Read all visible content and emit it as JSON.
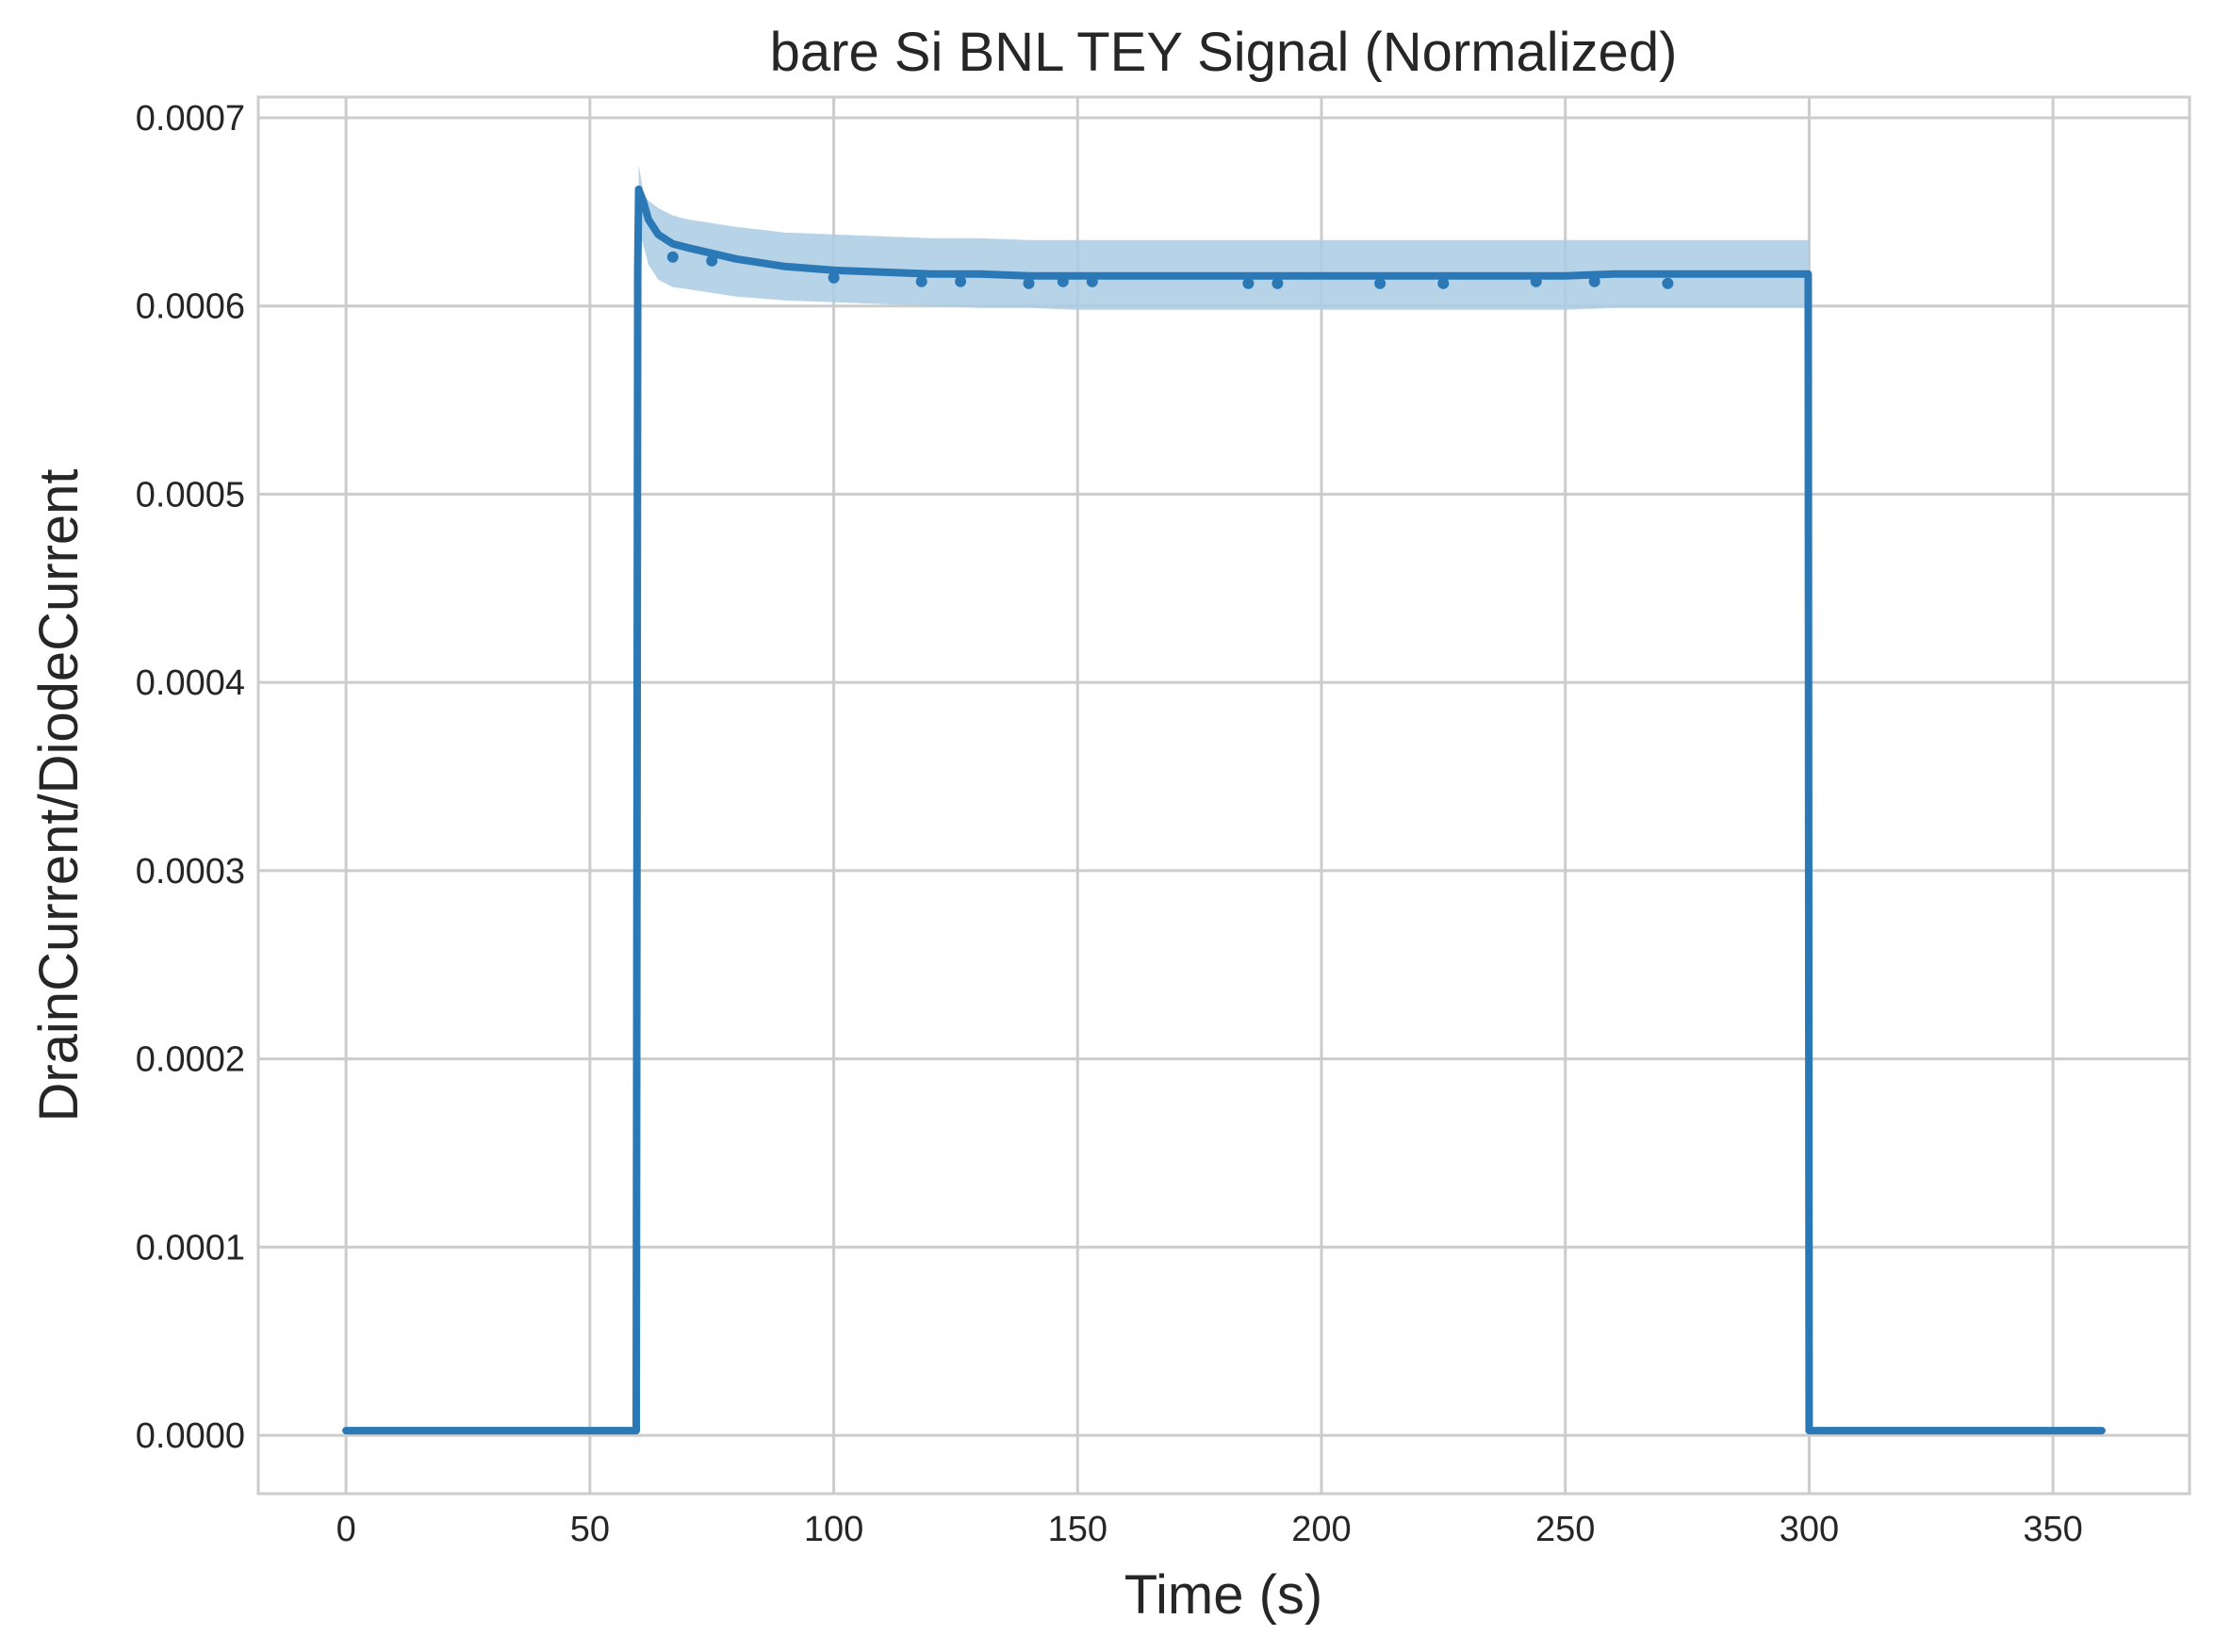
{
  "chart_data": {
    "type": "line",
    "title": "bare Si BNL TEY Signal (Normalized)",
    "xlabel": "Time (s)",
    "ylabel": "DrainCurrent/DiodeCurrent",
    "xlim": [
      -18,
      378
    ],
    "ylim": [
      -3.1e-05,
      0.000711
    ],
    "x_ticks": [
      0,
      50,
      100,
      150,
      200,
      250,
      300,
      350
    ],
    "x_tick_labels": [
      "0",
      "50",
      "100",
      "150",
      "200",
      "250",
      "300",
      "350"
    ],
    "y_ticks": [
      0,
      0.0001,
      0.0002,
      0.0003,
      0.0004,
      0.0005,
      0.0006,
      0.0007
    ],
    "y_tick_labels": [
      "0.0000",
      "0.0001",
      "0.0002",
      "0.0003",
      "0.0004",
      "0.0005",
      "0.0006",
      "0.0007"
    ],
    "grid": true,
    "colors": {
      "line": "#2a78b5",
      "band": "#a9cbe4",
      "grid": "#cccccc"
    },
    "series": [
      {
        "x": [
          0,
          20,
          40,
          59.5,
          59.8,
          60,
          61,
          62,
          64,
          67,
          70,
          75,
          80,
          90,
          100,
          110,
          120,
          130,
          140,
          150,
          160,
          170,
          180,
          190,
          200,
          210,
          220,
          230,
          240,
          250,
          260,
          270,
          280,
          290,
          299.8,
          300,
          320,
          340,
          360
        ],
        "y": [
          2.5e-06,
          2.5e-06,
          2.5e-06,
          2.5e-06,
          0.00062,
          0.000662,
          0.000655,
          0.000646,
          0.000638,
          0.000633,
          0.000631,
          0.000628,
          0.000625,
          0.000621,
          0.000619,
          0.000618,
          0.000617,
          0.000617,
          0.000616,
          0.000616,
          0.000616,
          0.000616,
          0.000616,
          0.000616,
          0.000616,
          0.000616,
          0.000616,
          0.000616,
          0.000616,
          0.000616,
          0.000617,
          0.000617,
          0.000617,
          0.000617,
          0.000617,
          2.5e-06,
          2.5e-06,
          2.5e-06,
          2.5e-06
        ],
        "band_x": [
          60,
          61,
          62,
          64,
          67,
          70,
          75,
          80,
          90,
          100,
          110,
          120,
          130,
          140,
          150,
          160,
          170,
          180,
          190,
          200,
          210,
          220,
          230,
          240,
          250,
          260,
          270,
          280,
          290,
          300
        ],
        "band_low": [
          0.00064,
          0.000632,
          0.000622,
          0.000614,
          0.00061,
          0.000609,
          0.000607,
          0.000605,
          0.000603,
          0.000602,
          0.000601,
          0.0006,
          0.000599,
          0.000599,
          0.000598,
          0.000598,
          0.000598,
          0.000598,
          0.000598,
          0.000598,
          0.000598,
          0.000598,
          0.000598,
          0.000598,
          0.000598,
          0.000599,
          0.000599,
          0.000599,
          0.000599,
          0.000599
        ],
        "band_high": [
          0.000675,
          0.00066,
          0.000656,
          0.000652,
          0.000648,
          0.000646,
          0.000644,
          0.000642,
          0.000639,
          0.000638,
          0.000637,
          0.000636,
          0.000636,
          0.000635,
          0.000635,
          0.000635,
          0.000635,
          0.000635,
          0.000635,
          0.000635,
          0.000635,
          0.000635,
          0.000635,
          0.000635,
          0.000635,
          0.000635,
          0.000635,
          0.000635,
          0.000635,
          0.000635
        ],
        "markers_x": [
          67,
          75,
          100,
          118,
          126,
          140,
          147,
          153,
          185,
          191,
          212,
          225,
          244,
          256,
          271
        ],
        "markers_y": [
          0.000628,
          0.000626,
          0.000617,
          0.000615,
          0.000615,
          0.000614,
          0.000615,
          0.000615,
          0.000614,
          0.000614,
          0.000614,
          0.000614,
          0.000615,
          0.000615,
          0.000614
        ]
      }
    ]
  }
}
